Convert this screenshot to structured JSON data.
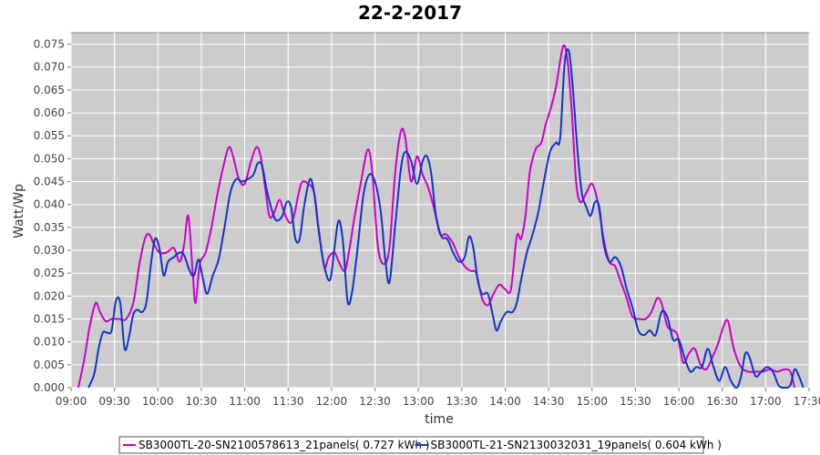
{
  "chart_data": {
    "type": "line",
    "title": "22-2-2017",
    "xlabel": "time",
    "ylabel": "Watt/Wp",
    "xlim": [
      "09:00",
      "17:30"
    ],
    "ylim": [
      0,
      0.0775
    ],
    "x_ticks": [
      "09:00",
      "09:30",
      "10:00",
      "10:30",
      "11:00",
      "11:30",
      "12:00",
      "12:30",
      "13:00",
      "13:30",
      "14:00",
      "14:30",
      "15:00",
      "15:30",
      "16:00",
      "16:30",
      "17:00",
      "17:30"
    ],
    "y_ticks": [
      "0.000",
      "0.005",
      "0.010",
      "0.015",
      "0.020",
      "0.025",
      "0.030",
      "0.035",
      "0.040",
      "0.045",
      "0.050",
      "0.055",
      "0.060",
      "0.065",
      "0.070",
      "0.075"
    ],
    "grid": true,
    "legend": "bottom",
    "series": [
      {
        "name": "SB3000TL-20-SN2100578613_21panels( 0.727 kWh )",
        "color": "#cc00cc",
        "points": [
          [
            "09:05",
            0.0
          ],
          [
            "09:09",
            0.006
          ],
          [
            "09:13",
            0.0135
          ],
          [
            "09:17",
            0.0185
          ],
          [
            "09:20",
            0.0165
          ],
          [
            "09:24",
            0.0145
          ],
          [
            "09:28",
            0.015
          ],
          [
            "09:33",
            0.015
          ],
          [
            "09:38",
            0.015
          ],
          [
            "09:43",
            0.0185
          ],
          [
            "09:47",
            0.0265
          ],
          [
            "09:51",
            0.0325
          ],
          [
            "09:54",
            0.0335
          ],
          [
            "09:57",
            0.0315
          ],
          [
            "10:01",
            0.0295
          ],
          [
            "10:06",
            0.0295
          ],
          [
            "10:11",
            0.0305
          ],
          [
            "10:15",
            0.0275
          ],
          [
            "10:18",
            0.031
          ],
          [
            "10:21",
            0.0375
          ],
          [
            "10:24",
            0.0255
          ],
          [
            "10:26",
            0.0185
          ],
          [
            "10:29",
            0.027
          ],
          [
            "10:33",
            0.0295
          ],
          [
            "10:37",
            0.035
          ],
          [
            "10:41",
            0.042
          ],
          [
            "10:45",
            0.048
          ],
          [
            "10:49",
            0.0525
          ],
          [
            "10:52",
            0.0505
          ],
          [
            "10:56",
            0.0455
          ],
          [
            "11:00",
            0.0445
          ],
          [
            "11:04",
            0.049
          ],
          [
            "11:08",
            0.0525
          ],
          [
            "11:11",
            0.0505
          ],
          [
            "11:14",
            0.044
          ],
          [
            "11:17",
            0.0375
          ],
          [
            "11:20",
            0.038
          ],
          [
            "11:24",
            0.041
          ],
          [
            "11:27",
            0.0385
          ],
          [
            "11:31",
            0.036
          ],
          [
            "11:34",
            0.0375
          ],
          [
            "11:39",
            0.0445
          ],
          [
            "11:44",
            0.0445
          ],
          [
            "11:48",
            0.0425
          ],
          [
            "11:51",
            0.035
          ],
          [
            "11:55",
            0.0265
          ],
          [
            "11:58",
            0.0285
          ],
          [
            "12:02",
            0.0295
          ],
          [
            "12:05",
            0.0275
          ],
          [
            "12:09",
            0.0255
          ],
          [
            "12:12",
            0.0295
          ],
          [
            "12:16",
            0.0375
          ],
          [
            "12:21",
            0.046
          ],
          [
            "12:25",
            0.052
          ],
          [
            "12:28",
            0.0475
          ],
          [
            "12:32",
            0.031
          ],
          [
            "12:36",
            0.027
          ],
          [
            "12:40",
            0.0305
          ],
          [
            "12:44",
            0.047
          ],
          [
            "12:48",
            0.056
          ],
          [
            "12:51",
            0.0545
          ],
          [
            "12:55",
            0.045
          ],
          [
            "12:59",
            0.0505
          ],
          [
            "13:03",
            0.0465
          ],
          [
            "13:07",
            0.0435
          ],
          [
            "13:11",
            0.039
          ],
          [
            "13:15",
            0.0335
          ],
          [
            "13:19",
            0.0335
          ],
          [
            "13:24",
            0.0315
          ],
          [
            "13:28",
            0.0285
          ],
          [
            "13:32",
            0.0265
          ],
          [
            "13:36",
            0.0255
          ],
          [
            "13:40",
            0.025
          ],
          [
            "13:44",
            0.0195
          ],
          [
            "13:48",
            0.018
          ],
          [
            "13:52",
            0.0205
          ],
          [
            "13:56",
            0.0225
          ],
          [
            "14:00",
            0.0215
          ],
          [
            "14:04",
            0.0215
          ],
          [
            "14:08",
            0.033
          ],
          [
            "14:11",
            0.0325
          ],
          [
            "14:14",
            0.0375
          ],
          [
            "14:17",
            0.047
          ],
          [
            "14:21",
            0.052
          ],
          [
            "14:25",
            0.0535
          ],
          [
            "14:28",
            0.0575
          ],
          [
            "14:31",
            0.0605
          ],
          [
            "14:35",
            0.0655
          ],
          [
            "14:40",
            0.0745
          ],
          [
            "14:43",
            0.0715
          ],
          [
            "14:46",
            0.0605
          ],
          [
            "14:49",
            0.045
          ],
          [
            "14:52",
            0.0405
          ],
          [
            "14:56",
            0.0425
          ],
          [
            "15:00",
            0.0445
          ],
          [
            "15:04",
            0.0405
          ],
          [
            "15:08",
            0.0325
          ],
          [
            "15:12",
            0.0275
          ],
          [
            "15:16",
            0.0265
          ],
          [
            "15:20",
            0.023
          ],
          [
            "15:24",
            0.0195
          ],
          [
            "15:28",
            0.0155
          ],
          [
            "15:33",
            0.015
          ],
          [
            "15:37",
            0.015
          ],
          [
            "15:41",
            0.0165
          ],
          [
            "15:45",
            0.0195
          ],
          [
            "15:48",
            0.0185
          ],
          [
            "15:52",
            0.0135
          ],
          [
            "15:56",
            0.0125
          ],
          [
            "15:59",
            0.0115
          ],
          [
            "16:03",
            0.0055
          ],
          [
            "16:07",
            0.0075
          ],
          [
            "16:11",
            0.0085
          ],
          [
            "16:15",
            0.005
          ],
          [
            "16:19",
            0.004
          ],
          [
            "16:23",
            0.0065
          ],
          [
            "16:27",
            0.0095
          ],
          [
            "16:31",
            0.0135
          ],
          [
            "16:34",
            0.0145
          ],
          [
            "16:38",
            0.0085
          ],
          [
            "16:43",
            0.0045
          ],
          [
            "16:48",
            0.0035
          ],
          [
            "16:53",
            0.0035
          ],
          [
            "16:58",
            0.0035
          ],
          [
            "17:03",
            0.004
          ],
          [
            "17:08",
            0.0035
          ],
          [
            "17:13",
            0.004
          ],
          [
            "17:17",
            0.0035
          ],
          [
            "17:20",
            0.0
          ]
        ]
      },
      {
        "name": "SB3000TL-21-SN2130032031_19panels( 0.604 kWh )",
        "color": "#1234c8",
        "points": [
          [
            "09:12",
            0.0
          ],
          [
            "09:16",
            0.003
          ],
          [
            "09:19",
            0.0085
          ],
          [
            "09:22",
            0.012
          ],
          [
            "09:25",
            0.012
          ],
          [
            "09:28",
            0.0125
          ],
          [
            "09:31",
            0.019
          ],
          [
            "09:34",
            0.0185
          ],
          [
            "09:37",
            0.0085
          ],
          [
            "09:40",
            0.011
          ],
          [
            "09:43",
            0.016
          ],
          [
            "09:46",
            0.017
          ],
          [
            "09:49",
            0.0165
          ],
          [
            "09:52",
            0.0185
          ],
          [
            "09:55",
            0.0265
          ],
          [
            "09:58",
            0.0325
          ],
          [
            "10:01",
            0.0305
          ],
          [
            "10:04",
            0.0245
          ],
          [
            "10:07",
            0.0275
          ],
          [
            "10:11",
            0.0285
          ],
          [
            "10:15",
            0.0295
          ],
          [
            "10:18",
            0.029
          ],
          [
            "10:22",
            0.0255
          ],
          [
            "10:25",
            0.0245
          ],
          [
            "10:28",
            0.028
          ],
          [
            "10:31",
            0.024
          ],
          [
            "10:34",
            0.0205
          ],
          [
            "10:38",
            0.0245
          ],
          [
            "10:42",
            0.028
          ],
          [
            "10:46",
            0.035
          ],
          [
            "10:50",
            0.0425
          ],
          [
            "10:54",
            0.0455
          ],
          [
            "10:58",
            0.045
          ],
          [
            "11:02",
            0.0455
          ],
          [
            "11:06",
            0.0465
          ],
          [
            "11:09",
            0.049
          ],
          [
            "11:12",
            0.0485
          ],
          [
            "11:15",
            0.0435
          ],
          [
            "11:19",
            0.0385
          ],
          [
            "11:22",
            0.0365
          ],
          [
            "11:26",
            0.0375
          ],
          [
            "11:29",
            0.0405
          ],
          [
            "11:32",
            0.0395
          ],
          [
            "11:35",
            0.0325
          ],
          [
            "11:38",
            0.0325
          ],
          [
            "11:41",
            0.0395
          ],
          [
            "11:45",
            0.0455
          ],
          [
            "11:48",
            0.0425
          ],
          [
            "11:51",
            0.0345
          ],
          [
            "11:55",
            0.0265
          ],
          [
            "11:59",
            0.0235
          ],
          [
            "12:02",
            0.0305
          ],
          [
            "12:05",
            0.0365
          ],
          [
            "12:08",
            0.0315
          ],
          [
            "12:11",
            0.019
          ],
          [
            "12:14",
            0.0205
          ],
          [
            "12:18",
            0.0305
          ],
          [
            "12:22",
            0.042
          ],
          [
            "12:26",
            0.0465
          ],
          [
            "12:30",
            0.045
          ],
          [
            "12:34",
            0.0385
          ],
          [
            "12:37",
            0.0285
          ],
          [
            "12:40",
            0.023
          ],
          [
            "12:44",
            0.0355
          ],
          [
            "12:48",
            0.048
          ],
          [
            "12:51",
            0.0515
          ],
          [
            "12:55",
            0.0495
          ],
          [
            "12:59",
            0.0445
          ],
          [
            "13:03",
            0.0495
          ],
          [
            "13:06",
            0.0505
          ],
          [
            "13:09",
            0.0465
          ],
          [
            "13:12",
            0.038
          ],
          [
            "13:16",
            0.033
          ],
          [
            "13:20",
            0.0325
          ],
          [
            "13:24",
            0.0295
          ],
          [
            "13:28",
            0.0275
          ],
          [
            "13:32",
            0.0285
          ],
          [
            "13:35",
            0.033
          ],
          [
            "13:38",
            0.0305
          ],
          [
            "13:41",
            0.0235
          ],
          [
            "13:44",
            0.0205
          ],
          [
            "13:48",
            0.0205
          ],
          [
            "13:51",
            0.0165
          ],
          [
            "13:54",
            0.0125
          ],
          [
            "13:57",
            0.0145
          ],
          [
            "14:01",
            0.0165
          ],
          [
            "14:05",
            0.0165
          ],
          [
            "14:08",
            0.0185
          ],
          [
            "14:11",
            0.0235
          ],
          [
            "14:15",
            0.0295
          ],
          [
            "14:19",
            0.0335
          ],
          [
            "14:23",
            0.0385
          ],
          [
            "14:27",
            0.0455
          ],
          [
            "14:31",
            0.0515
          ],
          [
            "14:35",
            0.0535
          ],
          [
            "14:38",
            0.0545
          ],
          [
            "14:41",
            0.0705
          ],
          [
            "14:44",
            0.0735
          ],
          [
            "14:47",
            0.0645
          ],
          [
            "14:50",
            0.0515
          ],
          [
            "14:53",
            0.0425
          ],
          [
            "14:56",
            0.0395
          ],
          [
            "14:59",
            0.0375
          ],
          [
            "15:02",
            0.0405
          ],
          [
            "15:05",
            0.0395
          ],
          [
            "15:08",
            0.0315
          ],
          [
            "15:12",
            0.0275
          ],
          [
            "15:16",
            0.0285
          ],
          [
            "15:20",
            0.0265
          ],
          [
            "15:24",
            0.0215
          ],
          [
            "15:28",
            0.0175
          ],
          [
            "15:32",
            0.0125
          ],
          [
            "15:36",
            0.0115
          ],
          [
            "15:40",
            0.0125
          ],
          [
            "15:44",
            0.0115
          ],
          [
            "15:48",
            0.0165
          ],
          [
            "15:52",
            0.0155
          ],
          [
            "15:56",
            0.0105
          ],
          [
            "16:00",
            0.0105
          ],
          [
            "16:04",
            0.0065
          ],
          [
            "16:08",
            0.0035
          ],
          [
            "16:12",
            0.0045
          ],
          [
            "16:16",
            0.0045
          ],
          [
            "16:20",
            0.0085
          ],
          [
            "16:24",
            0.0045
          ],
          [
            "16:28",
            0.0015
          ],
          [
            "16:32",
            0.0045
          ],
          [
            "16:36",
            0.0015
          ],
          [
            "16:40",
            0.0
          ],
          [
            "16:43",
            0.0025
          ],
          [
            "16:46",
            0.0075
          ],
          [
            "16:49",
            0.0065
          ],
          [
            "16:53",
            0.0025
          ],
          [
            "16:57",
            0.0035
          ],
          [
            "17:01",
            0.0045
          ],
          [
            "17:05",
            0.0035
          ],
          [
            "17:09",
            0.0005
          ],
          [
            "17:13",
            0.0
          ],
          [
            "17:17",
            0.0005
          ],
          [
            "17:20",
            0.004
          ],
          [
            "17:23",
            0.0025
          ],
          [
            "17:26",
            0.0
          ]
        ]
      }
    ]
  }
}
